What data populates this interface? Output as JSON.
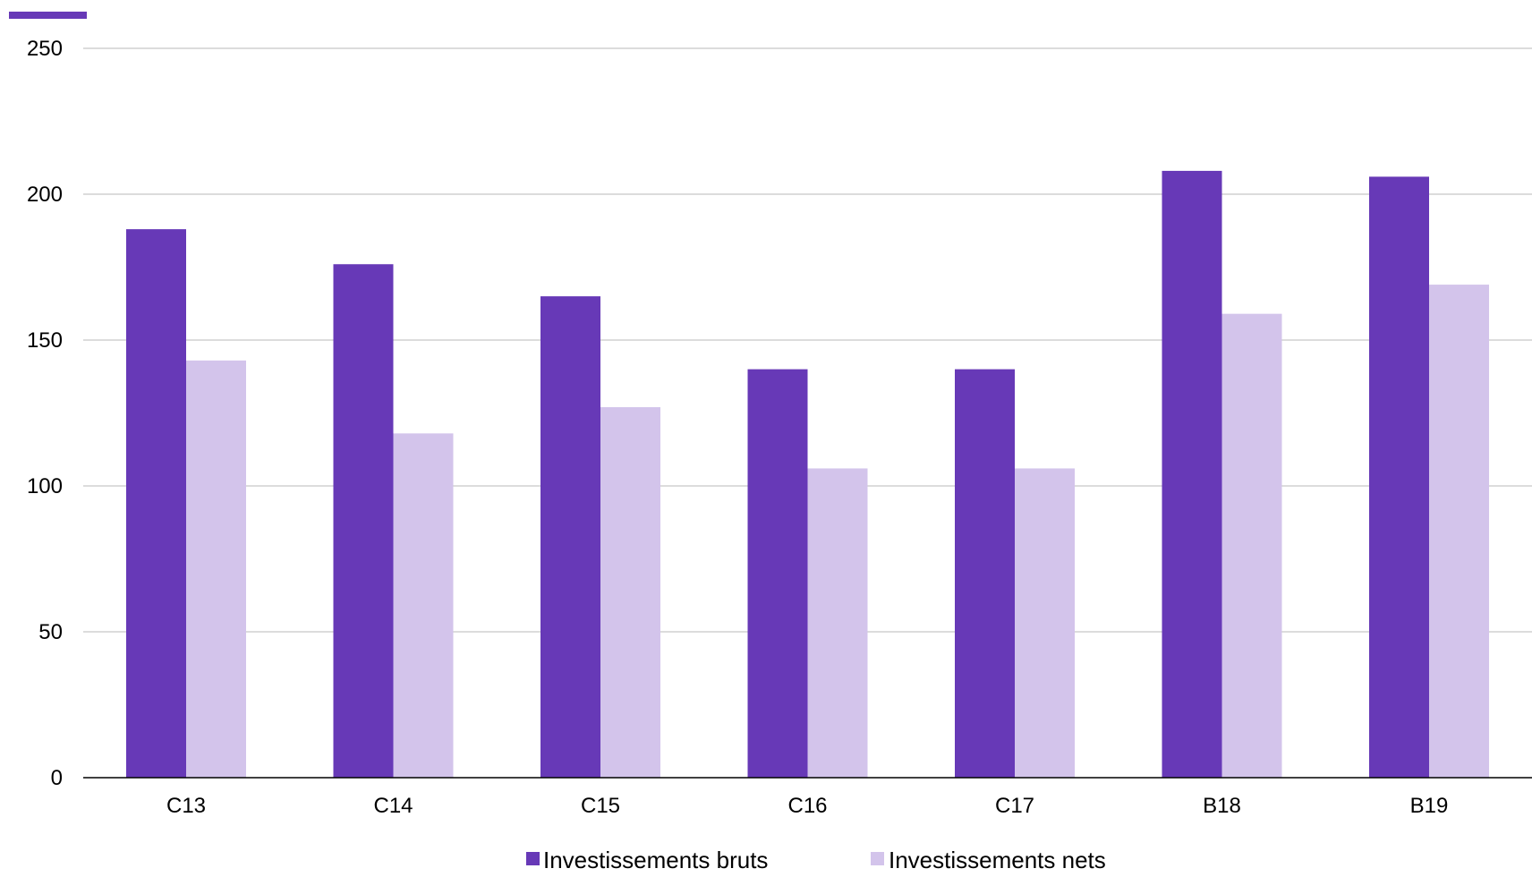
{
  "accent_color": "#6739b7",
  "chart_data": {
    "type": "bar",
    "title": "",
    "xlabel": "",
    "ylabel": "",
    "categories": [
      "C13",
      "C14",
      "C15",
      "C16",
      "C17",
      "B18",
      "B19"
    ],
    "series": [
      {
        "name": "Investissements bruts",
        "color": "#6739b7",
        "values": [
          188,
          176,
          165,
          140,
          140,
          208,
          206
        ]
      },
      {
        "name": "Investissements nets",
        "color": "#d3c4eb",
        "values": [
          143,
          118,
          127,
          106,
          106,
          159,
          169
        ]
      }
    ],
    "ylim": [
      0,
      250
    ],
    "yticks": [
      "0",
      "50",
      "100",
      "150",
      "200",
      "250"
    ],
    "grid": true,
    "legend_position": "bottom-center"
  }
}
